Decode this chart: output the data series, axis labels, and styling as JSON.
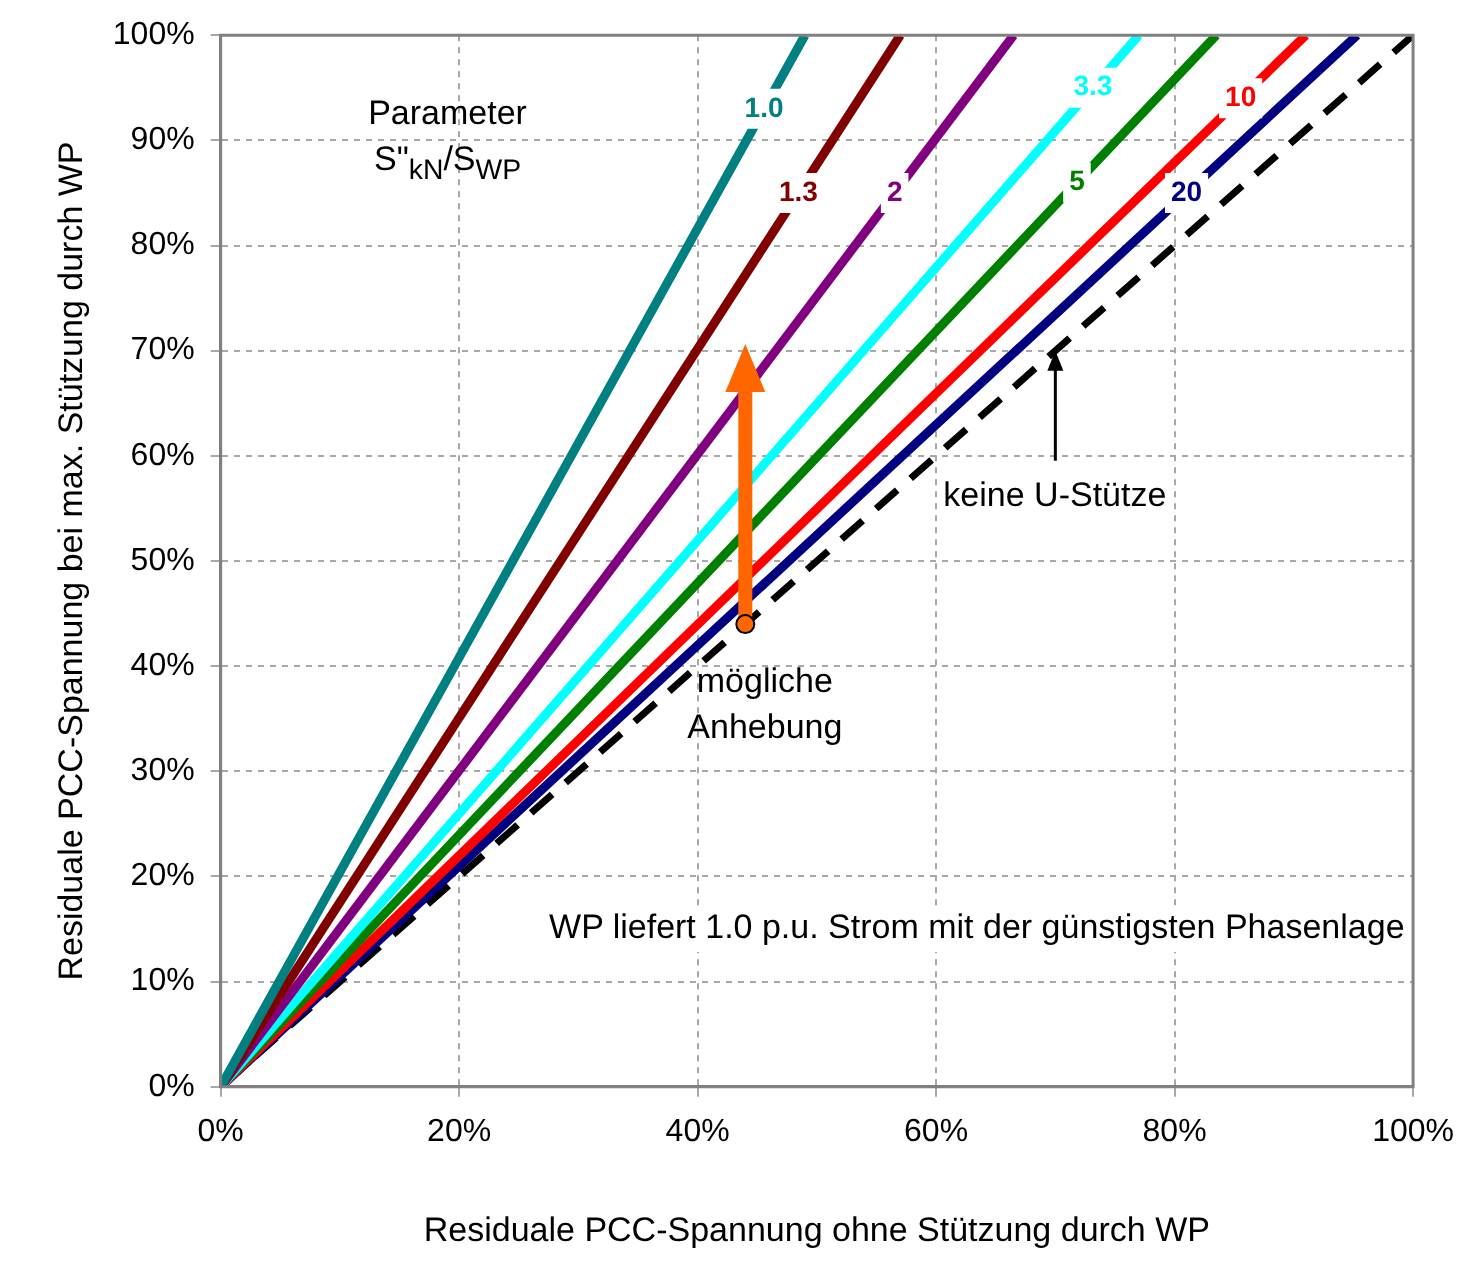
{
  "chart_data": {
    "type": "line",
    "xlabel": "Residuale PCC-Spannung ohne Stützung durch WP",
    "ylabel": "Residuale PCC-Spannung bei max. Stützung durch WP",
    "xlim": [
      0,
      100
    ],
    "ylim": [
      0,
      100
    ],
    "xticks": [
      {
        "value": 0,
        "label": "0%"
      },
      {
        "value": 20,
        "label": "20%"
      },
      {
        "value": 40,
        "label": "40%"
      },
      {
        "value": 60,
        "label": "60%"
      },
      {
        "value": 80,
        "label": "80%"
      },
      {
        "value": 100,
        "label": "100%"
      }
    ],
    "yticks": [
      {
        "value": 0,
        "label": "0%"
      },
      {
        "value": 10,
        "label": "10%"
      },
      {
        "value": 20,
        "label": "20%"
      },
      {
        "value": 30,
        "label": "30%"
      },
      {
        "value": 40,
        "label": "40%"
      },
      {
        "value": 50,
        "label": "50%"
      },
      {
        "value": 60,
        "label": "60%"
      },
      {
        "value": 70,
        "label": "70%"
      },
      {
        "value": 80,
        "label": "80%"
      },
      {
        "value": 90,
        "label": "90%"
      },
      {
        "value": 100,
        "label": "100%"
      }
    ],
    "grid": true,
    "legend": false,
    "marker": "none",
    "line_style": "solid",
    "series": [
      {
        "name": "1.0",
        "color": "#008080",
        "x": [
          0,
          49
        ],
        "values": [
          0,
          100
        ]
      },
      {
        "name": "1.3",
        "color": "#800000",
        "x": [
          0,
          57
        ],
        "values": [
          0,
          100
        ]
      },
      {
        "name": "2",
        "color": "#800080",
        "x": [
          0,
          66.5
        ],
        "values": [
          0,
          100
        ]
      },
      {
        "name": "3.3",
        "color": "#00ffff",
        "x": [
          0,
          77
        ],
        "values": [
          0,
          100
        ]
      },
      {
        "name": "5",
        "color": "#008000",
        "x": [
          0,
          83.5
        ],
        "values": [
          0,
          100
        ]
      },
      {
        "name": "10",
        "color": "#ff0000",
        "x": [
          0,
          91
        ],
        "values": [
          0,
          100
        ]
      },
      {
        "name": "20",
        "color": "#000080",
        "x": [
          0,
          95.3
        ],
        "values": [
          0,
          100
        ]
      },
      {
        "color": "#000000",
        "x": [
          0,
          100
        ],
        "values": [
          0,
          100
        ],
        "line_style": "dashed"
      }
    ],
    "annotations": [
      "Parameter S\"$_{kN}$/S$_{WP}$",
      "WP liefert 1.0 p.u. Strom mit der günstigsten Phasenlage",
      {
        "text": "keine U-Stütze",
        "x": 70,
        "y": 70
      },
      {
        "text": "mögliche Anhebung",
        "x": 44,
        "y": 44
      }
    ]
  }
}
